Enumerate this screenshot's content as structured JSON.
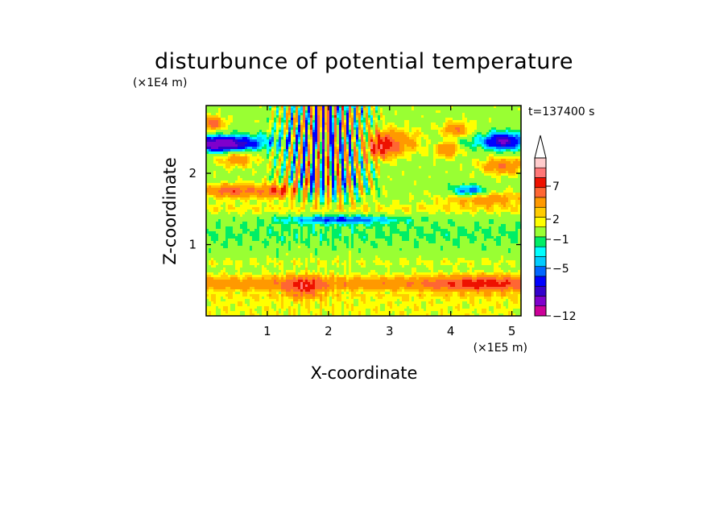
{
  "chart_data": {
    "type": "heatmap",
    "title": "disturbunce of potential temperature",
    "xlabel": "X-coordinate",
    "ylabel": "Z-coordinate",
    "x_unit": "(×1E5 m)",
    "y_unit": "(×1E4 m)",
    "time_label": "t=137400 s",
    "xlim": [
      0,
      5.15
    ],
    "ylim": [
      0,
      2.95
    ],
    "x_ticks": [
      "1",
      "2",
      "3",
      "4",
      "5"
    ],
    "x_tick_values": [
      1,
      2,
      3,
      4,
      5
    ],
    "y_ticks": [
      "1",
      "2"
    ],
    "y_tick_values": [
      1,
      2
    ],
    "colorbar": {
      "levels": [
        -12,
        -9,
        -7,
        -5,
        -4,
        -3,
        -2,
        -1,
        1,
        2,
        3,
        5,
        7,
        9,
        12
      ],
      "colors": [
        "#ff33cc",
        "#cc0099",
        "#7f00cc",
        "#3300cc",
        "#0000ff",
        "#0066ff",
        "#00ccff",
        "#00ffff",
        "#00ee66",
        "#99ff33",
        "#ffff00",
        "#ffcc00",
        "#ff9900",
        "#ff6633",
        "#ee1100",
        "#ff7777",
        "#ffcccc"
      ],
      "tick_labels": [
        "7",
        "2",
        "−1",
        "−5",
        "−12"
      ],
      "tick_values": [
        7,
        2,
        -1,
        -5,
        -12
      ]
    },
    "field_features": [
      {
        "kind": "band",
        "z": 0.45,
        "zw": 0.12,
        "value": 4.0
      },
      {
        "kind": "band",
        "z": 0.75,
        "zw": 0.06,
        "value": 1.0
      },
      {
        "kind": "band",
        "z": 1.15,
        "zw": 0.22,
        "value": -1.3
      },
      {
        "kind": "band",
        "z": 1.5,
        "zw": 0.08,
        "value": 1.6
      },
      {
        "kind": "band",
        "z": 2.45,
        "zw": 0.12,
        "value": -2.5
      },
      {
        "kind": "blob",
        "x": 0.25,
        "z": 2.4,
        "xw": 0.5,
        "zw": 0.1,
        "value": -10
      },
      {
        "kind": "blob",
        "x": 0.1,
        "z": 2.7,
        "xw": 0.2,
        "zw": 0.1,
        "value": 6
      },
      {
        "kind": "blob",
        "x": 0.45,
        "z": 1.75,
        "xw": 0.5,
        "zw": 0.1,
        "value": 6
      },
      {
        "kind": "blob",
        "x": 1.2,
        "z": 1.75,
        "xw": 0.3,
        "zw": 0.1,
        "value": 6
      },
      {
        "kind": "blob",
        "x": 2.2,
        "z": 1.35,
        "xw": 0.9,
        "zw": 0.06,
        "value": -5
      },
      {
        "kind": "blob",
        "x": 2.85,
        "z": 2.4,
        "xw": 0.3,
        "zw": 0.18,
        "value": 9
      },
      {
        "kind": "blob",
        "x": 3.3,
        "z": 2.45,
        "xw": 0.4,
        "zw": 0.15,
        "value": 5
      },
      {
        "kind": "blob",
        "x": 3.95,
        "z": 2.35,
        "xw": 0.2,
        "zw": 0.12,
        "value": 6
      },
      {
        "kind": "blob",
        "x": 4.1,
        "z": 2.6,
        "xw": 0.25,
        "zw": 0.12,
        "value": 5
      },
      {
        "kind": "blob",
        "x": 4.55,
        "z": 1.65,
        "xw": 0.7,
        "zw": 0.1,
        "value": 4
      },
      {
        "kind": "blob",
        "x": 4.85,
        "z": 2.45,
        "xw": 0.25,
        "zw": 0.12,
        "value": -7
      },
      {
        "kind": "blob",
        "x": 4.3,
        "z": 1.75,
        "xw": 0.3,
        "zw": 0.08,
        "value": -6
      },
      {
        "kind": "blob",
        "x": 4.85,
        "z": 2.1,
        "xw": 0.35,
        "zw": 0.12,
        "value": 5
      },
      {
        "kind": "blob",
        "x": 0.5,
        "z": 2.2,
        "xw": 0.3,
        "zw": 0.12,
        "value": 4
      },
      {
        "kind": "blob",
        "x": 4.5,
        "z": 0.45,
        "xw": 0.8,
        "zw": 0.12,
        "value": 4
      },
      {
        "kind": "blob",
        "x": 1.6,
        "z": 0.4,
        "xw": 0.3,
        "zw": 0.15,
        "value": 5
      },
      {
        "kind": "waves",
        "x0": 0.9,
        "x1": 3.0,
        "zc": 2.0,
        "value": 9
      }
    ]
  }
}
